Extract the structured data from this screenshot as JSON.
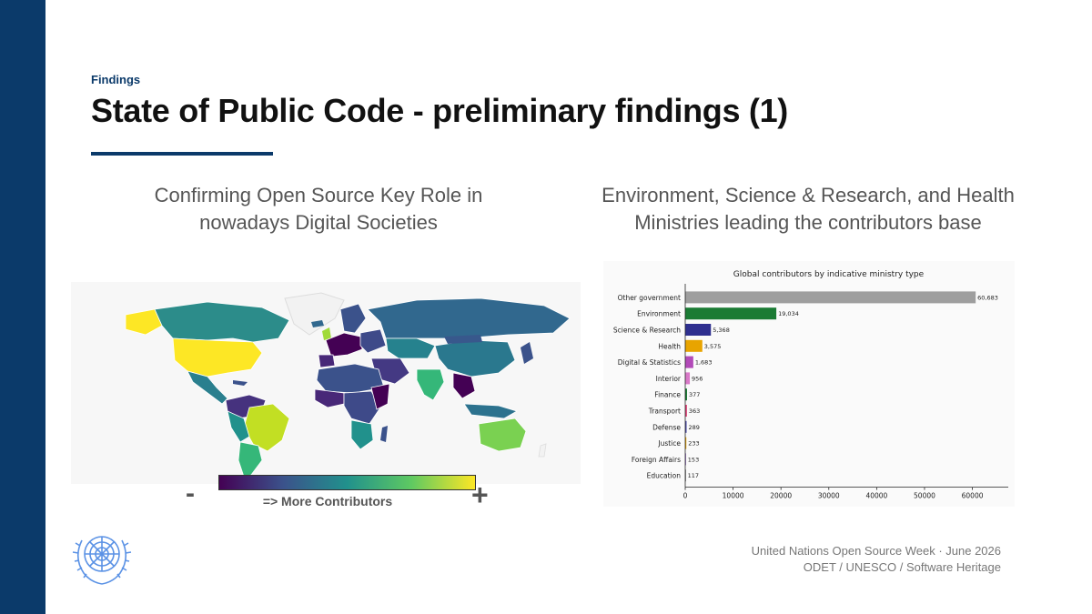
{
  "slide": {
    "kicker": "Findings",
    "title": "State of Public Code - preliminary findings (1)",
    "left_subtitle_line1": "Confirming Open Source Key Role in",
    "left_subtitle_line2": "nowadays Digital Societies",
    "right_subtitle_line1": "Environment, Science & Research, and Health",
    "right_subtitle_line2": "Ministries leading the contributors base"
  },
  "map": {
    "colorbar_min_label": "-",
    "colorbar_max_label": "+",
    "colorbar_caption": "=> More Contributors",
    "colormap": "viridis"
  },
  "footer": {
    "line1": "United Nations Open Source Week · June 2026",
    "line2": "ODET / UNESCO / Software Heritage"
  },
  "colors": {
    "brand_navy": "#0b3a6a",
    "un_blue": "#5b92e5"
  },
  "chart_data": {
    "type": "bar",
    "orientation": "horizontal",
    "title": "Global contributors by indicative ministry type",
    "categories": [
      "Other government",
      "Environment",
      "Science & Research",
      "Health",
      "Digital & Statistics",
      "Interior",
      "Finance",
      "Transport",
      "Defense",
      "Justice",
      "Foreign Affairs",
      "Education"
    ],
    "values": [
      60683,
      19034,
      5368,
      3575,
      1683,
      956,
      377,
      363,
      289,
      233,
      153,
      117
    ],
    "value_labels": [
      "60,683",
      "19,034",
      "5,368",
      "3,575",
      "1,683",
      "956",
      "377",
      "363",
      "289",
      "233",
      "153",
      "117"
    ],
    "bar_colors": [
      "#9e9e9e",
      "#1b7b34",
      "#2e2f8f",
      "#e8a400",
      "#b24ab8",
      "#d979c8",
      "#1b7b34",
      "#e0457b",
      "#4a4aa8",
      "#e8a400",
      "#7a4ab8",
      "#6a6a6a"
    ],
    "xticks": [
      0,
      10000,
      20000,
      30000,
      40000,
      50000,
      60000
    ],
    "xtick_labels": [
      "0",
      "10000",
      "20000",
      "30000",
      "40000",
      "50000",
      "60000"
    ],
    "xlim": [
      0,
      67500
    ],
    "xlabel": "",
    "ylabel": "",
    "grid": false
  }
}
